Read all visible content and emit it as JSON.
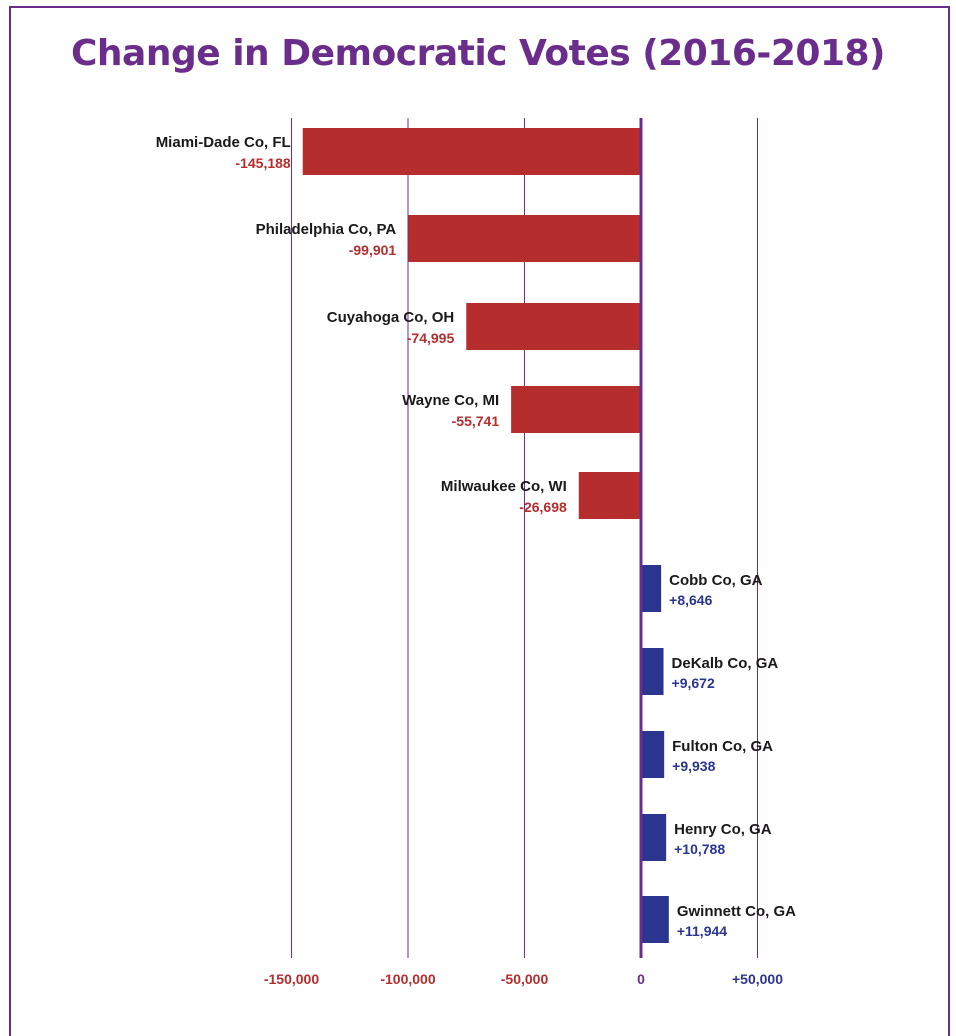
{
  "chart_data": {
    "type": "bar",
    "orientation": "horizontal",
    "title": "Change in Democratic Votes (2016-2018)",
    "xlabel": "",
    "ylabel": "",
    "xlim": [
      -180000,
      50000
    ],
    "grid": true,
    "legend": "none",
    "categories": [
      "Miami-Dade Co, FL",
      "Philadelphia Co, PA",
      "Cuyahoga Co, OH",
      "Wayne Co, MI",
      "Milwaukee Co, WI",
      "Cobb Co, GA",
      "DeKalb Co, GA",
      "Fulton Co, GA",
      "Henry Co, GA",
      "Gwinnett Co, GA"
    ],
    "values": [
      -145188,
      -99901,
      -74995,
      -55741,
      -26698,
      8646,
      9672,
      9938,
      10788,
      11944
    ],
    "value_labels": [
      "-145,188",
      "-99,901",
      "-74,995",
      "-55,741",
      "-26,698",
      "+8,646",
      "+9,672",
      "+9,938",
      "+10,788",
      "+11,944"
    ],
    "ticks": [
      -150000,
      -100000,
      -50000,
      0,
      50000
    ],
    "tick_labels": [
      "-150,000",
      "-100,000",
      "-50,000",
      "0",
      "+50,000"
    ],
    "colors": {
      "negative": "#b52d2d",
      "positive": "#2b3590",
      "zero": "#6b2d8c",
      "grid": "#6b2d8c",
      "title": "#6b2d8c"
    }
  }
}
